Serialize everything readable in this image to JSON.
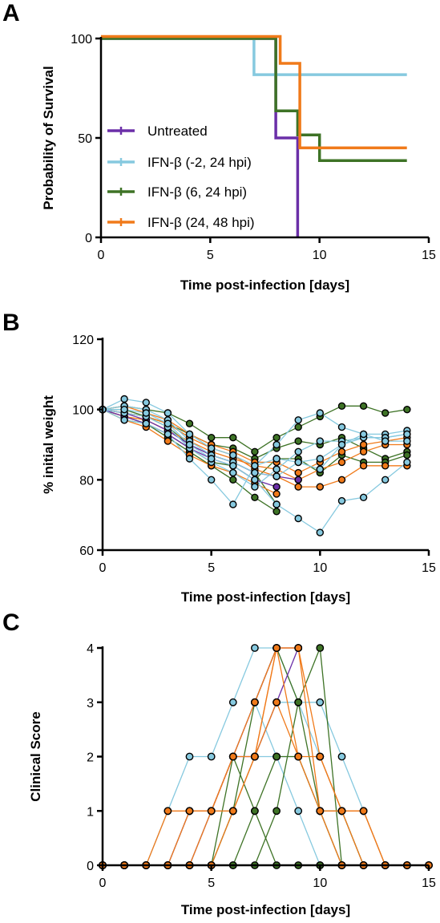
{
  "colors": {
    "untreated": "#6b2fa8",
    "ifn_m2_24": "#86c9df",
    "ifn_6_24": "#3e7326",
    "ifn_24_48": "#f07a1a"
  },
  "chart_data": [
    {
      "panel": "A",
      "type": "line",
      "xlabel": "Time post-infection [days]",
      "ylabel": "Probability of Survival",
      "xlim": [
        0,
        15
      ],
      "ylim": [
        0,
        100
      ],
      "xticks": [
        "0",
        "5",
        "10",
        "15"
      ],
      "yticks": [
        "0",
        "50",
        "100"
      ],
      "legend": "lower-left",
      "series": [
        {
          "name": "Untreated",
          "color_key": "untreated",
          "x": [
            0,
            8,
            8,
            9,
            9
          ],
          "y": [
            100,
            100,
            50,
            50,
            0
          ]
        },
        {
          "name": "IFN-β (-2, 24 hpi)",
          "color_key": "ifn_m2_24",
          "x": [
            0,
            7,
            7,
            14
          ],
          "y": [
            100,
            100,
            81.8,
            81.8
          ]
        },
        {
          "name": "IFN-β (6, 24 hpi)",
          "color_key": "ifn_6_24",
          "x": [
            0,
            8,
            8,
            9,
            9,
            10,
            10,
            14
          ],
          "y": [
            100,
            100,
            63.6,
            63.6,
            51.5,
            51.5,
            38.6,
            38.6
          ]
        },
        {
          "name": "IFN-β (24, 48 hpi)",
          "color_key": "ifn_24_48",
          "x": [
            0,
            8.2,
            8.2,
            9.1,
            9.1,
            14
          ],
          "y": [
            101,
            101,
            87.5,
            87.5,
            45,
            45
          ]
        }
      ]
    },
    {
      "panel": "B",
      "type": "line",
      "xlabel": "Time post-infection [days]",
      "ylabel": "% initial weight",
      "xlim": [
        0,
        15
      ],
      "ylim": [
        60,
        120
      ],
      "xticks": [
        "0",
        "5",
        "10",
        "15"
      ],
      "yticks": [
        "60",
        "80",
        "100",
        "120"
      ],
      "series": [
        {
          "color_key": "ifn_6_24",
          "x": [
            0,
            1,
            2,
            3,
            4,
            5,
            6,
            7,
            8,
            9,
            10,
            11,
            12,
            13,
            14
          ],
          "y": [
            100,
            101,
            100,
            99,
            96,
            92,
            92,
            88,
            92,
            95,
            98,
            101,
            101,
            99,
            100
          ]
        },
        {
          "color_key": "ifn_6_24",
          "x": [
            0,
            1,
            2,
            3,
            4,
            5,
            6,
            7,
            8,
            9,
            10,
            11,
            12,
            13,
            14
          ],
          "y": [
            100,
            99,
            98,
            96,
            93,
            90,
            89,
            86,
            89,
            91,
            90,
            92,
            89,
            86,
            88
          ]
        },
        {
          "color_key": "ifn_6_24",
          "x": [
            0,
            1,
            2,
            3,
            4,
            5,
            6,
            7,
            8
          ],
          "y": [
            100,
            98,
            96,
            92,
            88,
            84,
            80,
            75,
            71
          ]
        },
        {
          "color_key": "ifn_6_24",
          "x": [
            0,
            1,
            2,
            3,
            4,
            5,
            6,
            7,
            8,
            9,
            10,
            11,
            12,
            13,
            14
          ],
          "y": [
            100,
            97,
            96,
            93,
            89,
            85,
            84,
            80,
            86,
            86,
            82,
            87,
            85,
            85,
            87
          ]
        },
        {
          "color_key": "ifn_6_24",
          "x": [
            0,
            1,
            2,
            3,
            4,
            5,
            6,
            7,
            8
          ],
          "y": [
            100,
            100,
            98,
            95,
            90,
            87,
            85,
            82,
            73
          ]
        },
        {
          "color_key": "ifn_24_48",
          "x": [
            0,
            1,
            2,
            3,
            4,
            5,
            6,
            7,
            8,
            9,
            10,
            11,
            12,
            13,
            14
          ],
          "y": [
            100,
            98,
            97,
            94,
            91,
            88,
            86,
            84,
            83,
            80,
            83,
            85,
            88,
            90,
            90
          ]
        },
        {
          "color_key": "ifn_24_48",
          "x": [
            0,
            1,
            2,
            3,
            4,
            5,
            6,
            7,
            8,
            9,
            10,
            11,
            12,
            13,
            14
          ],
          "y": [
            100,
            99,
            98,
            96,
            92,
            89,
            87,
            83,
            81,
            78,
            78,
            80,
            84,
            84,
            84
          ]
        },
        {
          "color_key": "ifn_24_48",
          "x": [
            0,
            1,
            2,
            3,
            4,
            5,
            6,
            7,
            8
          ],
          "y": [
            100,
            97,
            95,
            91,
            87,
            84,
            82,
            79,
            76
          ]
        },
        {
          "color_key": "ifn_24_48",
          "x": [
            0,
            1,
            2,
            3,
            4,
            5,
            6,
            7,
            8,
            9,
            10,
            11,
            12,
            13,
            14
          ],
          "y": [
            100,
            101,
            99,
            97,
            93,
            90,
            88,
            85,
            85,
            82,
            85,
            88,
            90,
            91,
            92
          ]
        },
        {
          "color_key": "untreated",
          "x": [
            0,
            1,
            2,
            3,
            4,
            5,
            6,
            7,
            8
          ],
          "y": [
            100,
            98,
            96,
            93,
            89,
            86,
            84,
            80,
            78
          ]
        },
        {
          "color_key": "untreated",
          "x": [
            0,
            1,
            2,
            3,
            4,
            5,
            6,
            7,
            8,
            9
          ],
          "y": [
            100,
            99,
            97,
            94,
            90,
            87,
            85,
            82,
            81,
            80
          ]
        },
        {
          "color_key": "ifn_m2_24",
          "x": [
            0,
            1,
            2,
            3,
            4,
            5,
            6,
            7,
            8,
            9,
            10,
            11,
            12,
            13,
            14
          ],
          "y": [
            100,
            103,
            102,
            99,
            93,
            89,
            87,
            84,
            90,
            97,
            99,
            95,
            93,
            93,
            94
          ]
        },
        {
          "color_key": "ifn_m2_24",
          "x": [
            0,
            1,
            2,
            3,
            4,
            5,
            6,
            7,
            8,
            9,
            10,
            11,
            12,
            13,
            14
          ],
          "y": [
            100,
            101,
            100,
            97,
            91,
            87,
            85,
            82,
            81,
            85,
            86,
            90,
            92,
            92,
            93
          ]
        },
        {
          "color_key": "ifn_m2_24",
          "x": [
            0,
            1,
            2,
            3,
            4,
            5,
            6,
            7,
            8,
            9,
            10,
            11,
            12,
            13,
            14
          ],
          "y": [
            100,
            99,
            98,
            95,
            89,
            85,
            82,
            78,
            83,
            88,
            91,
            91,
            92,
            92,
            93
          ]
        },
        {
          "color_key": "ifn_m2_24",
          "x": [
            0,
            1,
            2,
            3,
            4,
            5,
            6,
            7,
            8,
            9,
            10,
            11,
            12,
            13,
            14
          ],
          "y": [
            100,
            100,
            99,
            96,
            90,
            86,
            84,
            80,
            73,
            69,
            65,
            74,
            75,
            80,
            85
          ]
        },
        {
          "color_key": "ifn_m2_24",
          "x": [
            0,
            1,
            2,
            3,
            4,
            5,
            6,
            7,
            8,
            9,
            10,
            11,
            12,
            13,
            14
          ],
          "y": [
            100,
            97,
            96,
            93,
            86,
            80,
            73,
            84,
            86,
            85,
            83,
            90,
            93,
            91,
            91
          ]
        }
      ]
    },
    {
      "panel": "C",
      "type": "line",
      "xlabel": "Time post-infection [days]",
      "ylabel": "Clinical Score",
      "xlim": [
        0,
        15
      ],
      "ylim": [
        0,
        4
      ],
      "xticks": [
        "0",
        "5",
        "10",
        "15"
      ],
      "yticks": [
        "0",
        "1",
        "2",
        "3",
        "4"
      ],
      "series": [
        {
          "color_key": "ifn_m2_24",
          "x": [
            0,
            1,
            2,
            3,
            4,
            5,
            6,
            7,
            8,
            9,
            10,
            11,
            12,
            13,
            14,
            15
          ],
          "y": [
            0,
            0,
            0,
            1,
            2,
            2,
            3,
            4,
            4,
            3,
            3,
            2,
            1,
            0,
            0,
            0
          ]
        },
        {
          "color_key": "ifn_m2_24",
          "x": [
            0,
            1,
            2,
            3,
            4,
            5,
            6,
            7,
            8,
            9,
            10,
            11,
            12,
            13,
            14,
            15
          ],
          "y": [
            0,
            0,
            0,
            0,
            1,
            1,
            2,
            3,
            2,
            1,
            0,
            0,
            0,
            0,
            0,
            0
          ]
        },
        {
          "color_key": "ifn_m2_24",
          "x": [
            0,
            1,
            2,
            3,
            4,
            5,
            6,
            7,
            8,
            9,
            10,
            11,
            12,
            13,
            14,
            15
          ],
          "y": [
            0,
            0,
            0,
            0,
            0,
            1,
            1,
            2,
            2,
            2,
            1,
            0,
            0,
            0,
            0,
            0
          ]
        },
        {
          "color_key": "ifn_m2_24",
          "x": [
            0,
            1,
            2,
            3,
            4,
            5,
            6,
            7,
            8,
            9,
            10,
            11,
            12,
            13,
            14,
            15
          ],
          "y": [
            0,
            0,
            0,
            0,
            0,
            0,
            1,
            2,
            3,
            3,
            2,
            1,
            0,
            0,
            0,
            0
          ]
        },
        {
          "color_key": "ifn_6_24",
          "x": [
            0,
            1,
            2,
            3,
            4,
            5,
            6,
            7,
            8,
            9,
            10,
            11
          ],
          "y": [
            0,
            0,
            0,
            0,
            0,
            0,
            1,
            3,
            4,
            3,
            4,
            0
          ]
        },
        {
          "color_key": "ifn_6_24",
          "x": [
            0,
            1,
            2,
            3,
            4,
            5,
            6,
            7,
            8,
            9,
            10,
            11
          ],
          "y": [
            0,
            0,
            0,
            0,
            0,
            0,
            2,
            1,
            2,
            2,
            1,
            0
          ]
        },
        {
          "color_key": "ifn_6_24",
          "x": [
            0,
            1,
            2,
            3,
            4,
            5,
            6,
            7,
            8,
            9,
            10,
            11
          ],
          "y": [
            0,
            0,
            0,
            0,
            0,
            0,
            0,
            1,
            0,
            0,
            0,
            0
          ]
        },
        {
          "color_key": "ifn_6_24",
          "x": [
            0,
            1,
            2,
            3,
            4,
            5,
            6,
            7,
            8,
            9,
            10,
            11,
            12,
            13
          ],
          "y": [
            0,
            0,
            0,
            0,
            0,
            0,
            0,
            0,
            1,
            3,
            1,
            1,
            0,
            0
          ]
        },
        {
          "color_key": "untreated",
          "x": [
            0,
            1,
            2,
            3,
            4,
            5,
            6,
            7,
            8,
            9
          ],
          "y": [
            0,
            0,
            0,
            0,
            1,
            1,
            2,
            3,
            4,
            4
          ]
        },
        {
          "color_key": "untreated",
          "x": [
            0,
            1,
            2,
            3,
            4,
            5,
            6,
            7,
            8,
            9
          ],
          "y": [
            0,
            0,
            0,
            0,
            0,
            1,
            2,
            2,
            3,
            4
          ]
        },
        {
          "color_key": "ifn_24_48",
          "x": [
            0,
            1,
            2,
            3,
            4,
            5,
            6,
            7,
            8,
            9,
            10,
            11,
            12,
            13,
            14,
            15
          ],
          "y": [
            0,
            0,
            0,
            1,
            1,
            1,
            2,
            2,
            4,
            4,
            1,
            1,
            1,
            0,
            0,
            0
          ]
        },
        {
          "color_key": "ifn_24_48",
          "x": [
            0,
            1,
            2,
            3,
            4,
            5,
            6,
            7,
            8,
            9,
            10,
            11,
            12,
            13
          ],
          "y": [
            0,
            0,
            0,
            0,
            1,
            1,
            1,
            2,
            3,
            2,
            2,
            1,
            0,
            0
          ]
        },
        {
          "color_key": "ifn_24_48",
          "x": [
            0,
            1,
            2,
            3,
            4,
            5,
            6,
            7,
            8,
            9,
            10,
            11,
            12,
            13
          ],
          "y": [
            0,
            0,
            0,
            0,
            0,
            1,
            2,
            3,
            4,
            2,
            1,
            0,
            0,
            0
          ]
        },
        {
          "color_key": "ifn_24_48",
          "x": [
            0,
            1,
            2,
            3,
            4,
            5,
            6,
            7,
            8,
            9,
            10,
            11,
            12,
            13
          ],
          "y": [
            0,
            0,
            0,
            0,
            0,
            0,
            1,
            2,
            4,
            4,
            2,
            1,
            1,
            0
          ]
        }
      ]
    }
  ]
}
